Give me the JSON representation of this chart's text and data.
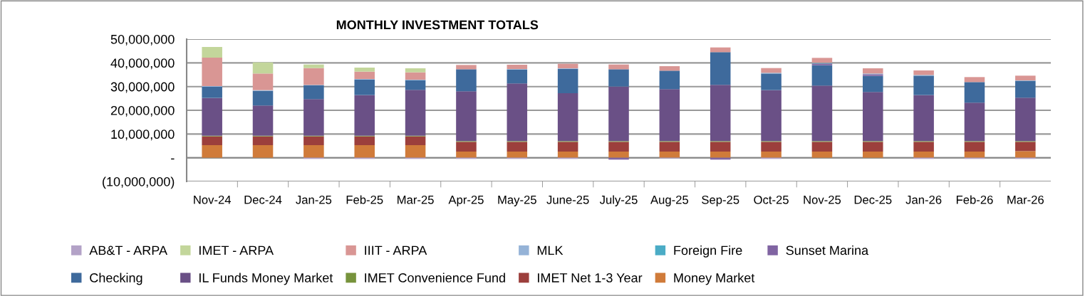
{
  "chart_data": {
    "type": "bar",
    "stacked": true,
    "title": "MONTHLY INVESTMENT TOTALS",
    "categories": [
      "Nov-24",
      "Dec-24",
      "Jan-25",
      "Feb-25",
      "Mar-25",
      "Apr-25",
      "May-25",
      "June-25",
      "July-25",
      "Aug-25",
      "Sep-25",
      "Oct-25",
      "Nov-25",
      "Dec-25",
      "Jan-26",
      "Feb-26",
      "Mar-26"
    ],
    "series": [
      {
        "name": "Money Market",
        "color": "#d07b3a",
        "values": [
          5300000,
          5300000,
          5300000,
          5300000,
          5300000,
          2600000,
          2600000,
          2600000,
          2600000,
          2600000,
          2600000,
          2600000,
          2600000,
          2600000,
          2600000,
          2600000,
          2800000
        ]
      },
      {
        "name": "IMET Net 1-3 Year",
        "color": "#9c3f3c",
        "values": [
          3700000,
          3700000,
          3700000,
          3700000,
          3700000,
          4100000,
          4100000,
          4100000,
          4100000,
          4100000,
          4100000,
          4100000,
          4100000,
          4100000,
          4100000,
          4100000,
          3900000
        ]
      },
      {
        "name": "IMET Convenience Fund",
        "color": "#77933c",
        "values": [
          300000,
          300000,
          300000,
          300000,
          300000,
          300000,
          300000,
          300000,
          300000,
          300000,
          300000,
          300000,
          300000,
          300000,
          300000,
          300000,
          300000
        ]
      },
      {
        "name": "IL Funds Money Market",
        "color": "#6a5086",
        "values": [
          15900000,
          12700000,
          15400000,
          17100000,
          19300000,
          21000000,
          24300000,
          20200000,
          23000000,
          21900000,
          23700000,
          21500000,
          23400000,
          20700000,
          19400000,
          16200000,
          18300000
        ]
      },
      {
        "name": "Checking",
        "color": "#3e6a9c",
        "values": [
          4700000,
          6200000,
          5800000,
          6600000,
          4100000,
          9300000,
          5900000,
          10300000,
          7300000,
          7800000,
          13800000,
          7000000,
          8600000,
          6800000,
          8200000,
          8700000,
          7100000
        ]
      },
      {
        "name": "Sunset Marina",
        "color": "#8064a2",
        "values": [
          null,
          null,
          null,
          null,
          null,
          null,
          null,
          null,
          -800000,
          null,
          -800000,
          null,
          700000,
          700000,
          null,
          null,
          null
        ]
      },
      {
        "name": "Foreign Fire",
        "color": "#4bacc6",
        "values": [
          null,
          null,
          null,
          null,
          null,
          null,
          null,
          null,
          null,
          null,
          null,
          null,
          300000,
          null,
          null,
          null,
          null
        ]
      },
      {
        "name": "MLK",
        "color": "#95b3d7",
        "values": [
          300000,
          300000,
          200000,
          200000,
          200000,
          null,
          200000,
          200000,
          null,
          null,
          null,
          300000,
          null,
          300000,
          300000,
          null,
          200000
        ]
      },
      {
        "name": "IIIT - ARPA",
        "color": "#d99694",
        "values": [
          12000000,
          7000000,
          7100000,
          3100000,
          3100000,
          1800000,
          1800000,
          1900000,
          2000000,
          1900000,
          2000000,
          2000000,
          2100000,
          2200000,
          1900000,
          2100000,
          2000000
        ]
      },
      {
        "name": "IMET - ARPA",
        "color": "#c3d69b",
        "values": [
          4500000,
          4700000,
          1500000,
          1700000,
          1700000,
          null,
          null,
          null,
          null,
          null,
          null,
          null,
          null,
          null,
          null,
          null,
          null
        ]
      },
      {
        "name": "AB&T - ARPA",
        "color": "#b3a2c7",
        "values": [
          null,
          null,
          -500000,
          -500000,
          -500000,
          -500000,
          -500000,
          -500000,
          null,
          -300000,
          null,
          -500000,
          null,
          null,
          -500000,
          -500000,
          -500000
        ]
      }
    ],
    "ylim": [
      -10000000,
      50000000
    ],
    "yticks": [
      {
        "value": -10000000,
        "label": "(10,000,000)"
      },
      {
        "value": 0,
        "label": "-"
      },
      {
        "value": 10000000,
        "label": "10,000,000"
      },
      {
        "value": 20000000,
        "label": "20,000,000"
      },
      {
        "value": 30000000,
        "label": "30,000,000"
      },
      {
        "value": 40000000,
        "label": "40,000,000"
      },
      {
        "value": 50000000,
        "label": "50,000,000"
      }
    ],
    "grid": "y",
    "legend": "bottom"
  }
}
